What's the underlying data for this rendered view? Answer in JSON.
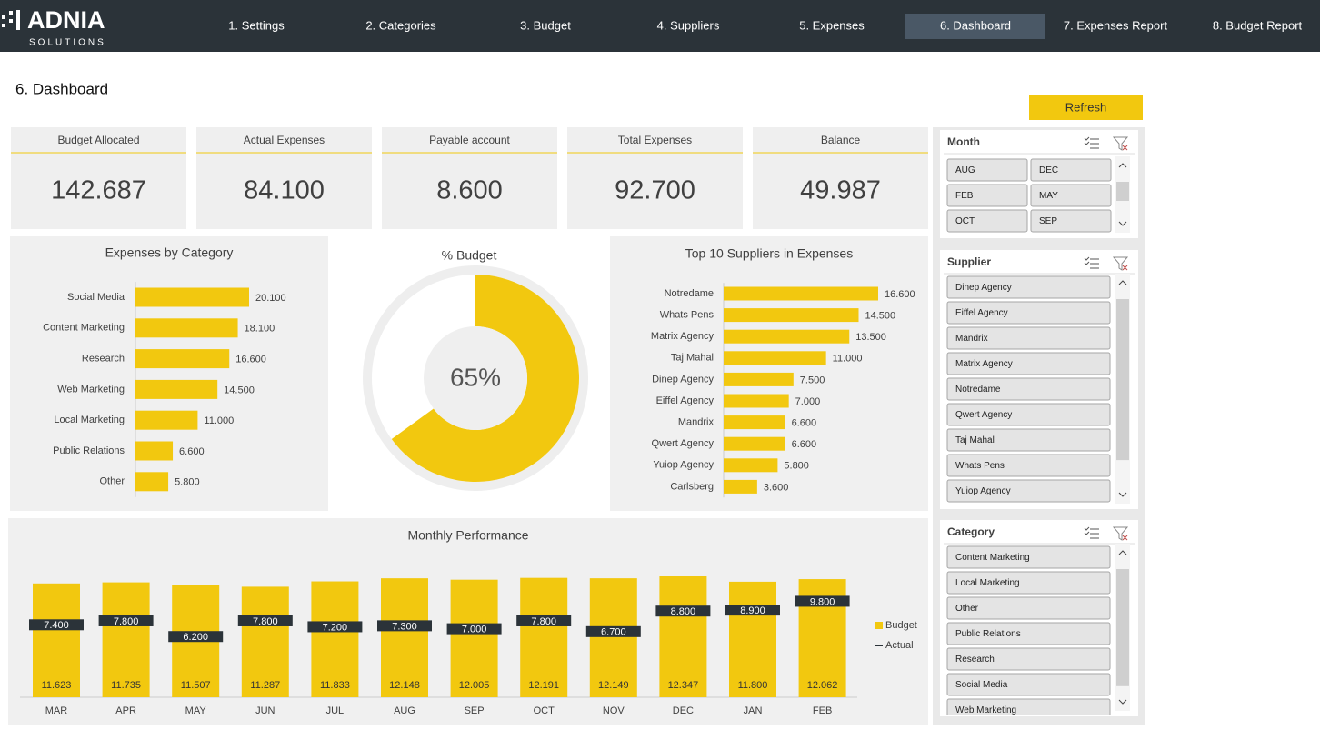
{
  "header": {
    "logo": "ADNIA",
    "logo_sub": "SOLUTIONS",
    "nav": [
      "1. Settings",
      "2. Categories",
      "3. Budget",
      "4. Suppliers",
      "5. Expenses",
      "6. Dashboard",
      "7. Expenses Report",
      "8. Budget Report"
    ],
    "active": 5
  },
  "page_title": "6. Dashboard",
  "refresh_button": "Refresh",
  "kpis": [
    {
      "label": "Budget Allocated",
      "value": "142.687"
    },
    {
      "label": "Actual Expenses",
      "value": "84.100"
    },
    {
      "label": "Payable account",
      "value": "8.600"
    },
    {
      "label": "Total Expenses",
      "value": "92.700"
    },
    {
      "label": "Balance",
      "value": "49.987"
    }
  ],
  "chart_data": [
    {
      "type": "hbar",
      "title": "Expenses by Category",
      "categories": [
        "Social Media",
        "Content Marketing",
        "Research",
        "Web Marketing",
        "Local Marketing",
        "Public Relations",
        "Other"
      ],
      "values": [
        20100,
        18100,
        16600,
        14500,
        11000,
        6600,
        5800
      ],
      "value_labels": [
        "20.100",
        "18.100",
        "16.600",
        "14.500",
        "11.000",
        "6.600",
        "5.800"
      ],
      "color": "#f2c80f"
    },
    {
      "type": "donut",
      "title": "% Budget",
      "values": [
        65
      ],
      "value_labels": [
        "65%"
      ],
      "color": "#f2c80f"
    },
    {
      "type": "hbar",
      "title": "Top 10 Suppliers in Expenses",
      "categories": [
        "Notredame",
        "Whats Pens",
        "Matrix Agency",
        "Taj Mahal",
        "Dinep Agency",
        "Eiffel Agency",
        "Mandrix",
        "Qwert Agency",
        "Yuiop Agency",
        "Carlsberg"
      ],
      "values": [
        16600,
        14500,
        13500,
        11000,
        7500,
        7000,
        6600,
        6600,
        5800,
        3600
      ],
      "value_labels": [
        "16.600",
        "14.500",
        "13.500",
        "11.000",
        "7.500",
        "7.000",
        "6.600",
        "6.600",
        "5.800",
        "3.600"
      ],
      "color": "#f2c80f"
    },
    {
      "type": "bar",
      "title": "Monthly  Performance",
      "categories": [
        "MAR",
        "APR",
        "MAY",
        "JUN",
        "JUL",
        "AUG",
        "SEP",
        "OCT",
        "NOV",
        "DEC",
        "JAN",
        "FEB"
      ],
      "series": [
        {
          "name": "Budget",
          "color": "#f2c80f",
          "style": "bar",
          "values": [
            11623,
            11735,
            11507,
            11287,
            11833,
            12148,
            12005,
            12191,
            12149,
            12347,
            11800,
            12062
          ],
          "value_labels": [
            "11.623",
            "11.735",
            "11.507",
            "11.287",
            "11.833",
            "12.148",
            "12.005",
            "12.191",
            "12.149",
            "12.347",
            "11.800",
            "12.062"
          ]
        },
        {
          "name": "Actual",
          "color": "#2b3339",
          "style": "dash",
          "values": [
            7400,
            7800,
            6200,
            7800,
            7200,
            7300,
            7000,
            7800,
            6700,
            8800,
            8900,
            9800
          ],
          "value_labels": [
            "7.400",
            "7.800",
            "6.200",
            "7.800",
            "7.200",
            "7.300",
            "7.000",
            "7.800",
            "6.700",
            "8.800",
            "8.900",
            "9.800"
          ]
        }
      ],
      "legend": "right"
    }
  ],
  "slicers": [
    {
      "title": "Month",
      "items": [
        "AUG",
        "DEC",
        "FEB",
        "MAY",
        "OCT",
        "SEP"
      ]
    },
    {
      "title": "Supplier",
      "items": [
        "Dinep Agency",
        "Eiffel Agency",
        "Mandrix",
        "Matrix Agency",
        "Notredame",
        "Qwert Agency",
        "Taj Mahal",
        "Whats Pens",
        "Yuiop Agency"
      ]
    },
    {
      "title": "Category",
      "items": [
        "Content Marketing",
        "Local Marketing",
        "Other",
        "Public Relations",
        "Research",
        "Social Media",
        "Web Marketing"
      ]
    }
  ]
}
